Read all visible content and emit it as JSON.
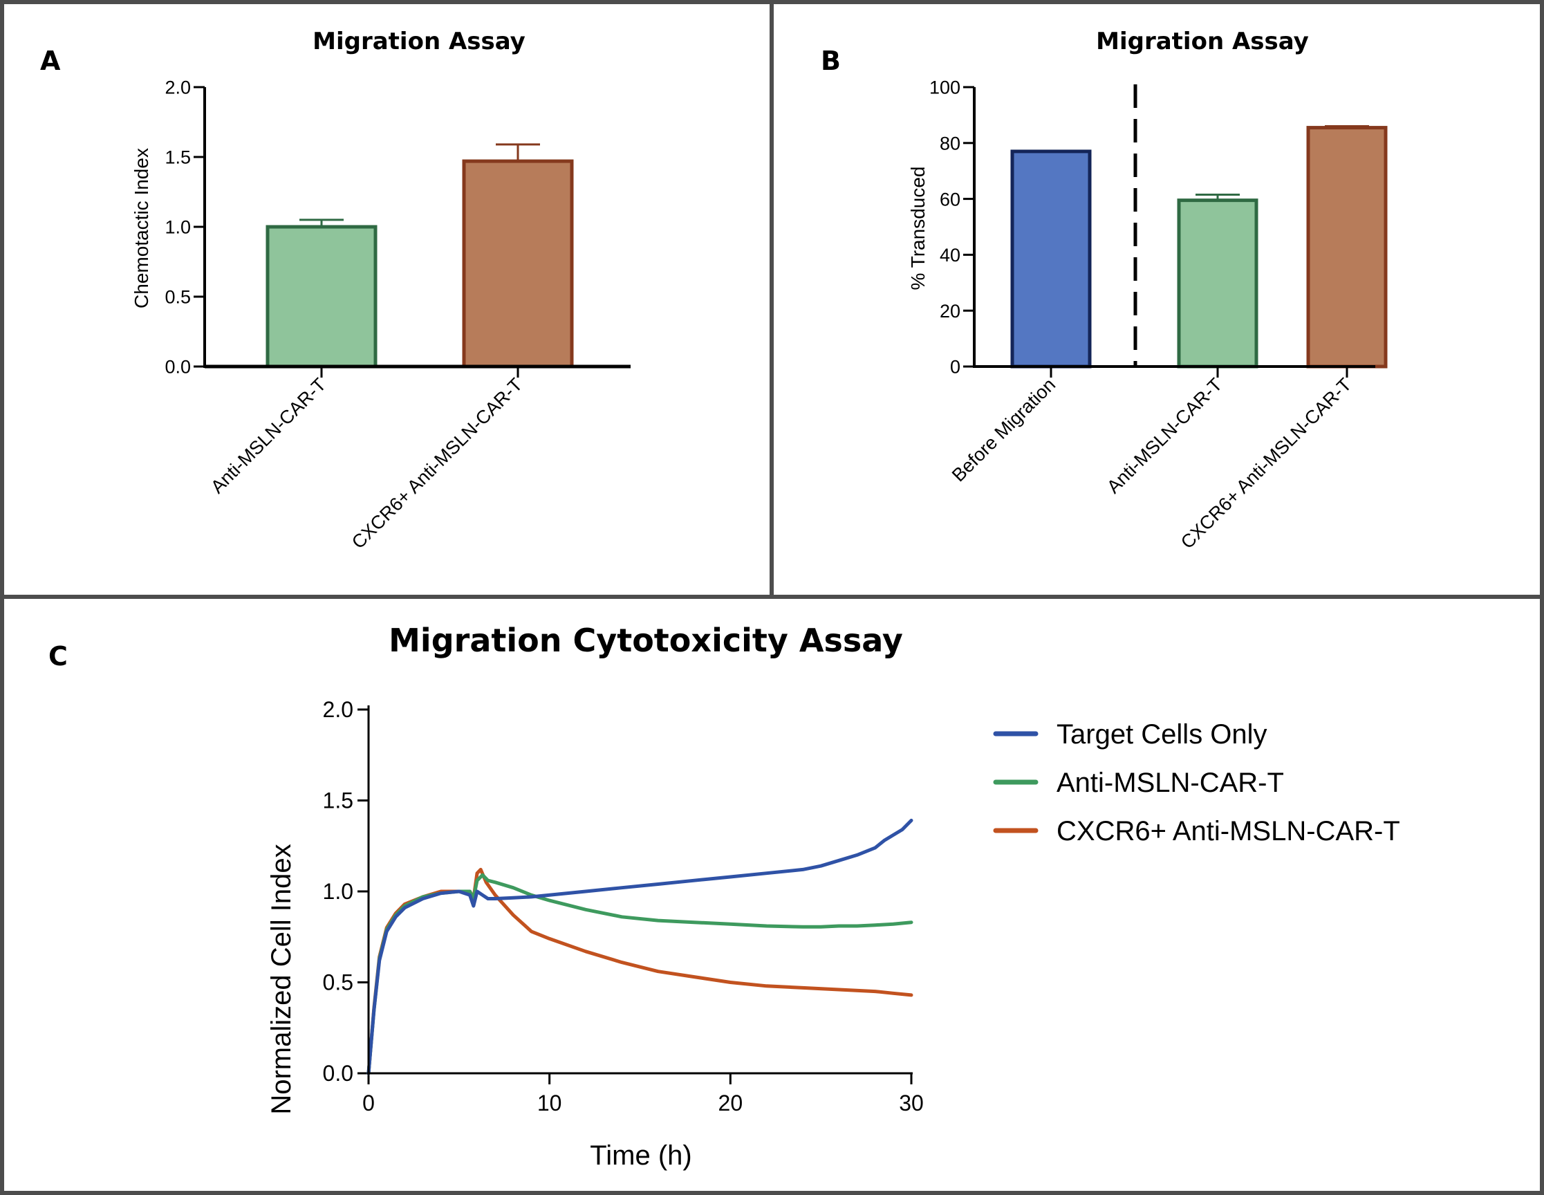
{
  "figure": {
    "panel_letters": [
      "A",
      "B",
      "C"
    ],
    "colors": {
      "green_fill": "#8fc49b",
      "green_stroke": "#2f6a43",
      "brown_fill": "#b77c5a",
      "brown_stroke": "#85391d",
      "blue_fill": "#5477c2",
      "blue_stroke": "#142558",
      "line_blue": "#2f52a6",
      "line_green": "#3e9a5e",
      "line_orange": "#c2521f"
    }
  },
  "chart_data": [
    {
      "panel": "A",
      "type": "bar",
      "title": "Migration Assay",
      "xlabel": "",
      "ylabel": "Chemotactic Index",
      "ylim": [
        0,
        2.0
      ],
      "yticks": [
        "0.0",
        "0.5",
        "1.0",
        "1.5",
        "2.0"
      ],
      "categories": [
        "Anti-MSLN-CAR-T",
        "CXCR6+ Anti-MSLN-CAR-T"
      ],
      "values": [
        1.0,
        1.47
      ],
      "errors": [
        0.05,
        0.12
      ]
    },
    {
      "panel": "B",
      "type": "bar",
      "title": "Migration Assay",
      "xlabel": "",
      "ylabel": "% Transduced",
      "ylim": [
        0,
        100
      ],
      "yticks": [
        "0",
        "20",
        "40",
        "60",
        "80",
        "100"
      ],
      "categories": [
        "Before Migration",
        "Anti-MSLN-CAR-T",
        "CXCR6+ Anti-MSLN-CAR-T"
      ],
      "values": [
        77,
        59.5,
        85.5
      ],
      "errors": [
        0,
        2.0,
        0.5
      ],
      "divider": "dashed vertical line between Before Migration and Anti-MSLN-CAR-T"
    },
    {
      "panel": "C",
      "type": "line",
      "title": "Migration Cytotoxicity Assay",
      "xlabel": "Time (h)",
      "ylabel": "Normalized Cell Index",
      "xlim": [
        0,
        30
      ],
      "ylim": [
        0,
        2.0
      ],
      "xticks": [
        "0",
        "10",
        "20",
        "30"
      ],
      "yticks": [
        "0.0",
        "0.5",
        "1.0",
        "1.5",
        "2.0"
      ],
      "legend_position": "right",
      "series": [
        {
          "name": "Target Cells Only",
          "x": [
            0,
            0.3,
            0.6,
            1,
            1.5,
            2,
            3,
            4,
            5,
            5.6,
            5.8,
            6,
            6.3,
            6.6,
            7,
            8,
            9,
            10,
            12,
            14,
            16,
            18,
            20,
            22,
            24,
            25,
            26,
            27,
            28,
            28.5,
            29,
            29.5,
            30
          ],
          "y": [
            0,
            0.35,
            0.62,
            0.78,
            0.86,
            0.91,
            0.96,
            0.99,
            1.0,
            0.98,
            0.92,
            1.0,
            0.98,
            0.96,
            0.96,
            0.965,
            0.97,
            0.98,
            1.0,
            1.02,
            1.04,
            1.06,
            1.08,
            1.1,
            1.12,
            1.14,
            1.17,
            1.2,
            1.24,
            1.28,
            1.31,
            1.34,
            1.39
          ]
        },
        {
          "name": "Anti-MSLN-CAR-T",
          "x": [
            0,
            0.3,
            0.6,
            1,
            1.5,
            2,
            3,
            4,
            5,
            5.6,
            5.8,
            6,
            6.3,
            6.6,
            7,
            8,
            9,
            10,
            12,
            14,
            16,
            18,
            20,
            22,
            24,
            25,
            26,
            27,
            28,
            29,
            30
          ],
          "y": [
            0,
            0.35,
            0.63,
            0.79,
            0.87,
            0.92,
            0.97,
            0.99,
            1.0,
            1.0,
            0.96,
            1.06,
            1.09,
            1.06,
            1.05,
            1.02,
            0.98,
            0.95,
            0.9,
            0.86,
            0.84,
            0.83,
            0.82,
            0.81,
            0.805,
            0.805,
            0.81,
            0.81,
            0.815,
            0.82,
            0.83
          ]
        },
        {
          "name": "CXCR6+ Anti-MSLN-CAR-T",
          "x": [
            0,
            0.3,
            0.6,
            1,
            1.5,
            2,
            3,
            4,
            5,
            5.6,
            5.8,
            6,
            6.2,
            6.5,
            7,
            8,
            9,
            10,
            12,
            14,
            16,
            18,
            20,
            22,
            24,
            26,
            28,
            29,
            30
          ],
          "y": [
            0,
            0.36,
            0.64,
            0.8,
            0.88,
            0.93,
            0.97,
            1.0,
            1.0,
            1.0,
            0.96,
            1.1,
            1.12,
            1.05,
            0.98,
            0.87,
            0.78,
            0.74,
            0.67,
            0.61,
            0.56,
            0.53,
            0.5,
            0.48,
            0.47,
            0.46,
            0.45,
            0.44,
            0.43
          ]
        }
      ]
    }
  ]
}
